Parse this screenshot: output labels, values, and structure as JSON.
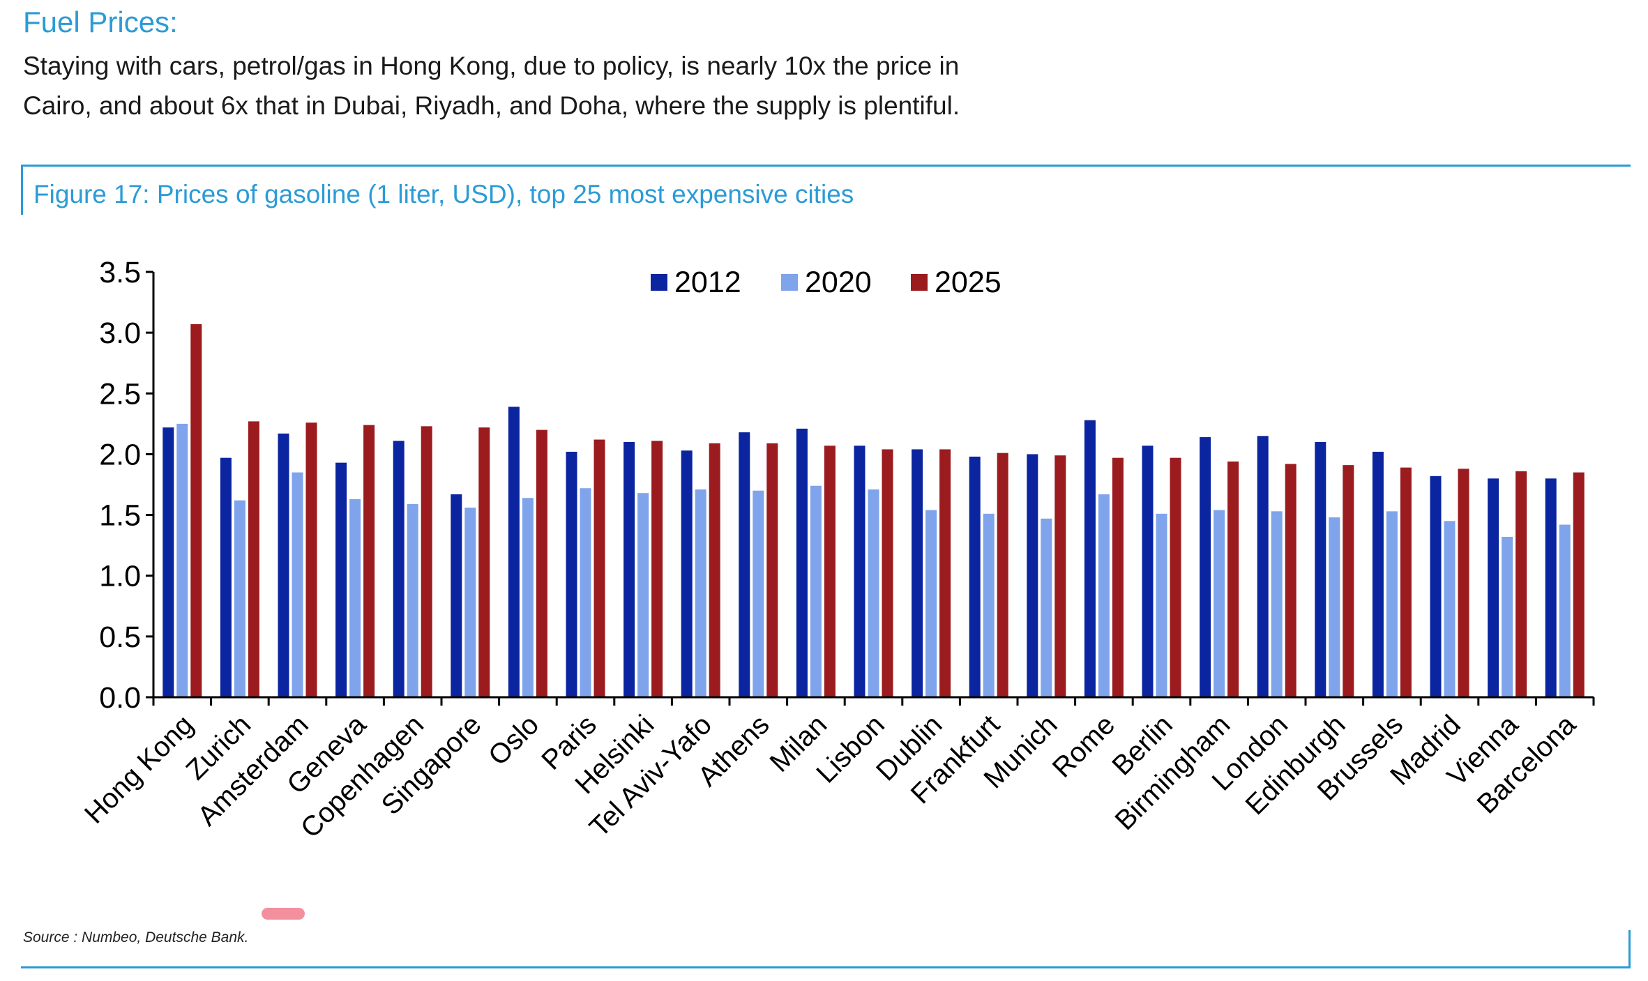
{
  "header": {
    "section_title": "Fuel Prices:",
    "intro_line1": "Staying with cars, petrol/gas in Hong Kong, due to policy, is nearly 10x the price in",
    "intro_line2": "Cairo, and about 6x that in Dubai, Riyadh, and Doha, where the supply is plentiful."
  },
  "figure": {
    "title": "Figure 17: Prices of gasoline (1 liter, USD), top 25 most expensive cities",
    "source": "Source : Numbeo, Deutsche Bank."
  },
  "colors": {
    "accent": "#2b9bd6",
    "series_2012": "#0b24a0",
    "series_2020": "#7fa4ec",
    "series_2025": "#9b1b1e",
    "highlight_mark": "#f06b7d"
  },
  "chart_data": {
    "type": "bar",
    "title": "Figure 17: Prices of gasoline (1 liter, USD), top 25 most expensive cities",
    "xlabel": "",
    "ylabel": "",
    "ylim": [
      0,
      3.5
    ],
    "yticks": [
      "0.0",
      "0.5",
      "1.0",
      "1.5",
      "2.0",
      "2.5",
      "3.0",
      "3.5"
    ],
    "grid": false,
    "legend_position": "top-center",
    "categories": [
      "Hong Kong",
      "Zurich",
      "Amsterdam",
      "Geneva",
      "Copenhagen",
      "Singapore",
      "Oslo",
      "Paris",
      "Helsinki",
      "Tel Aviv-Yafo",
      "Athens",
      "Milan",
      "Lisbon",
      "Dublin",
      "Frankfurt",
      "Munich",
      "Rome",
      "Berlin",
      "Birmingham",
      "London",
      "Edinburgh",
      "Brussels",
      "Madrid",
      "Vienna",
      "Barcelona"
    ],
    "series": [
      {
        "name": "2012",
        "color": "#0b24a0",
        "values": [
          2.22,
          1.97,
          2.17,
          1.93,
          2.11,
          1.67,
          2.39,
          2.02,
          2.1,
          2.03,
          2.18,
          2.21,
          2.07,
          2.04,
          1.98,
          2.0,
          2.28,
          2.07,
          2.14,
          2.15,
          2.1,
          2.02,
          1.82,
          1.8,
          1.8
        ]
      },
      {
        "name": "2020",
        "color": "#7fa4ec",
        "values": [
          2.25,
          1.62,
          1.85,
          1.63,
          1.59,
          1.56,
          1.64,
          1.72,
          1.68,
          1.71,
          1.7,
          1.74,
          1.71,
          1.54,
          1.51,
          1.47,
          1.67,
          1.51,
          1.54,
          1.53,
          1.48,
          1.53,
          1.45,
          1.32,
          1.42
        ]
      },
      {
        "name": "2025",
        "color": "#9b1b1e",
        "values": [
          3.07,
          2.27,
          2.26,
          2.24,
          2.23,
          2.22,
          2.2,
          2.12,
          2.11,
          2.09,
          2.09,
          2.07,
          2.04,
          2.04,
          2.01,
          1.99,
          1.97,
          1.97,
          1.94,
          1.92,
          1.91,
          1.89,
          1.88,
          1.86,
          1.85
        ]
      }
    ]
  }
}
